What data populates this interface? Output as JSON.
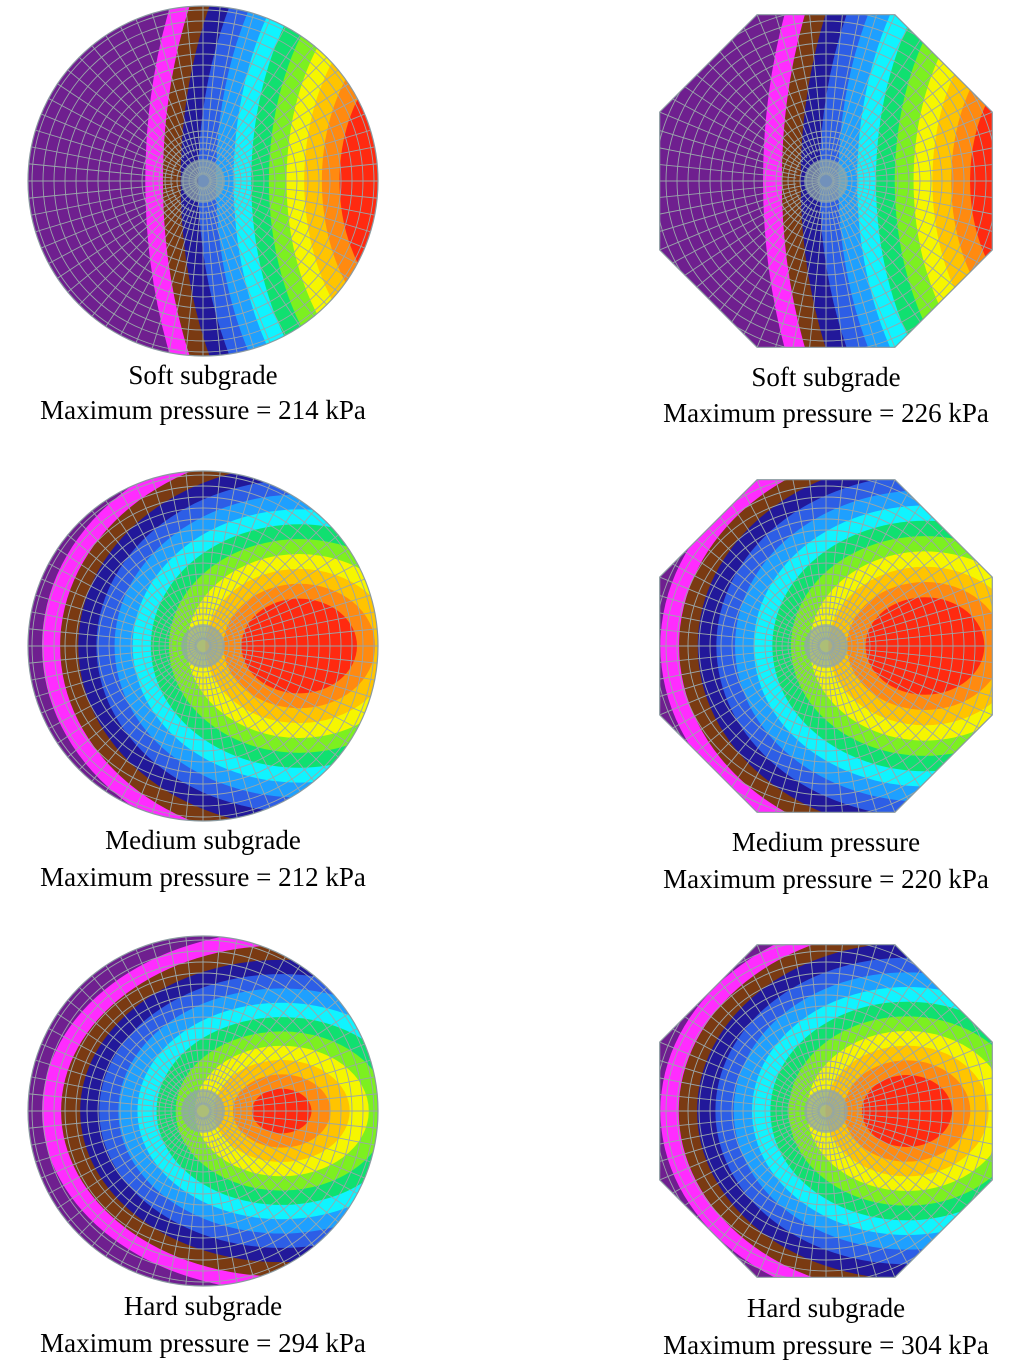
{
  "panels": [
    {
      "title": "Soft subgrade",
      "caption": "Maximum pressure = 214 kPa"
    },
    {
      "title": "Soft subgrade",
      "caption": "Maximum pressure = 226 kPa"
    },
    {
      "title": "Medium subgrade",
      "caption": "Maximum pressure = 212 kPa"
    },
    {
      "title": "Medium pressure",
      "caption": "Maximum pressure = 220 kPa"
    },
    {
      "title": "Hard subgrade",
      "caption": "Maximum pressure = 294 kPa"
    },
    {
      "title": "Hard subgrade",
      "caption": "Maximum pressure = 304 kPa"
    }
  ]
}
